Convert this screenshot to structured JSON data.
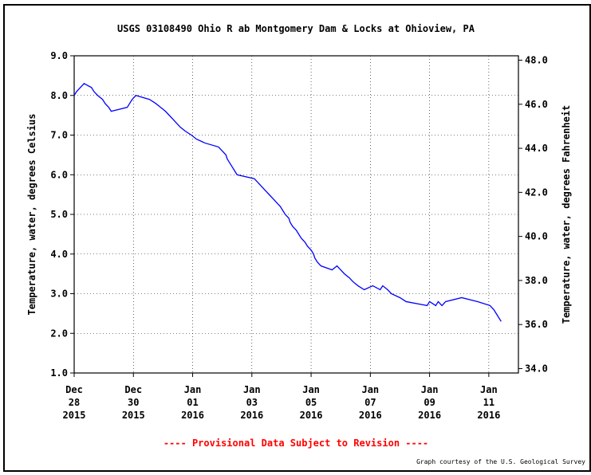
{
  "chart_data": {
    "type": "line",
    "title": "USGS 03108490 Ohio R ab Montgomery Dam & Locks at Ohioview, PA",
    "ylabel": "Temperature, water, degrees Celsius",
    "y2label": "Temperature, water, degrees Fahrenheit",
    "note": "---- Provisional Data Subject to Revision ----",
    "credit": "Graph courtesy of the U.S. Geological Survey",
    "xlim": [
      "2015-12-28T00:00",
      "2016-01-12T00:00"
    ],
    "xticks": [
      {
        "value": "2015-12-28T00:00",
        "label": "Dec\n28\n2015"
      },
      {
        "value": "2015-12-30T00:00",
        "label": "Dec\n30\n2015"
      },
      {
        "value": "2016-01-01T00:00",
        "label": "Jan\n01\n2016"
      },
      {
        "value": "2016-01-03T00:00",
        "label": "Jan\n03\n2016"
      },
      {
        "value": "2016-01-05T00:00",
        "label": "Jan\n05\n2016"
      },
      {
        "value": "2016-01-07T00:00",
        "label": "Jan\n07\n2016"
      },
      {
        "value": "2016-01-09T00:00",
        "label": "Jan\n09\n2016"
      },
      {
        "value": "2016-01-11T00:00",
        "label": "Jan\n11\n2016"
      }
    ],
    "ylim": [
      1,
      9
    ],
    "yticks": [
      {
        "value": 1,
        "label": "1.0"
      },
      {
        "value": 2,
        "label": "2.0"
      },
      {
        "value": 3,
        "label": "3.0"
      },
      {
        "value": 4,
        "label": "4.0"
      },
      {
        "value": 5,
        "label": "5.0"
      },
      {
        "value": 6,
        "label": "6.0"
      },
      {
        "value": 7,
        "label": "7.0"
      },
      {
        "value": 8,
        "label": "8.0"
      },
      {
        "value": 9,
        "label": "9.0"
      }
    ],
    "y2lim": [
      33.8,
      48.2
    ],
    "y2ticks": [
      {
        "value": 34,
        "label": "34.0"
      },
      {
        "value": 36,
        "label": "36.0"
      },
      {
        "value": 38,
        "label": "38.0"
      },
      {
        "value": 40,
        "label": "40.0"
      },
      {
        "value": 42,
        "label": "42.0"
      },
      {
        "value": 44,
        "label": "44.0"
      },
      {
        "value": 46,
        "label": "46.0"
      },
      {
        "value": 48,
        "label": "48.0"
      }
    ],
    "grid": true,
    "x": [
      "2015-12-28T00:00",
      "2015-12-28T02:00",
      "2015-12-28T05:00",
      "2015-12-28T08:00",
      "2015-12-28T14:00",
      "2015-12-28T16:00",
      "2015-12-28T19:00",
      "2015-12-28T23:00",
      "2015-12-29T01:00",
      "2015-12-29T04:00",
      "2015-12-29T06:00",
      "2015-12-29T19:00",
      "2015-12-29T21:00",
      "2015-12-29T23:00",
      "2015-12-30T02:00",
      "2015-12-30T13:00",
      "2015-12-30T18:00",
      "2015-12-30T22:00",
      "2015-12-31T02:00",
      "2015-12-31T05:00",
      "2015-12-31T08:00",
      "2015-12-31T11:00",
      "2015-12-31T14:00",
      "2015-12-31T18:00",
      "2015-12-31T23:00",
      "2016-01-01T03:00",
      "2016-01-01T10:00",
      "2016-01-01T21:00",
      "2016-01-02T00:00",
      "2016-01-02T03:00",
      "2016-01-02T04:00",
      "2016-01-02T06:00",
      "2016-01-02T08:00",
      "2016-01-02T10:00",
      "2016-01-02T12:00",
      "2016-01-03T02:00",
      "2016-01-03T05:00",
      "2016-01-03T08:00",
      "2016-01-03T11:00",
      "2016-01-03T14:00",
      "2016-01-03T17:00",
      "2016-01-03T20:00",
      "2016-01-03T23:00",
      "2016-01-04T01:00",
      "2016-01-04T03:00",
      "2016-01-04T06:00",
      "2016-01-04T07:00",
      "2016-01-04T09:00",
      "2016-01-04T12:00",
      "2016-01-04T14:00",
      "2016-01-04T16:00",
      "2016-01-04T19:00",
      "2016-01-04T21:00",
      "2016-01-05T00:00",
      "2016-01-05T02:00",
      "2016-01-05T03:00",
      "2016-01-05T05:00",
      "2016-01-05T08:00",
      "2016-01-05T17:00",
      "2016-01-05T21:00",
      "2016-01-06T00:00",
      "2016-01-06T03:00",
      "2016-01-06T07:00",
      "2016-01-06T10:00",
      "2016-01-06T14:00",
      "2016-01-06T19:00",
      "2016-01-07T02:00",
      "2016-01-07T08:00",
      "2016-01-07T10:00",
      "2016-01-07T14:00",
      "2016-01-07T17:00",
      "2016-01-08T00:00",
      "2016-01-08T05:00",
      "2016-01-08T22:00",
      "2016-01-09T00:00",
      "2016-01-09T05:00",
      "2016-01-09T07:00",
      "2016-01-09T10:00",
      "2016-01-09T13:00",
      "2016-01-10T02:00",
      "2016-01-10T15:00",
      "2016-01-11T01:00",
      "2016-01-11T04:00",
      "2016-01-11T06:00",
      "2016-01-11T08:00",
      "2016-01-11T10:00"
    ],
    "series": [
      {
        "color": "#0000ff",
        "values": [
          8.0,
          8.1,
          8.2,
          8.3,
          8.2,
          8.1,
          8.0,
          7.9,
          7.8,
          7.7,
          7.6,
          7.7,
          7.8,
          7.9,
          8.0,
          7.9,
          7.8,
          7.7,
          7.6,
          7.5,
          7.4,
          7.3,
          7.2,
          7.1,
          7.0,
          6.9,
          6.8,
          6.7,
          6.6,
          6.5,
          6.4,
          6.3,
          6.2,
          6.1,
          6.0,
          5.9,
          5.8,
          5.7,
          5.6,
          5.5,
          5.4,
          5.3,
          5.2,
          5.1,
          5.0,
          4.9,
          4.8,
          4.7,
          4.6,
          4.5,
          4.4,
          4.3,
          4.2,
          4.1,
          4.0,
          3.9,
          3.8,
          3.7,
          3.6,
          3.7,
          3.6,
          3.5,
          3.4,
          3.3,
          3.2,
          3.1,
          3.2,
          3.1,
          3.2,
          3.1,
          3.0,
          2.9,
          2.8,
          2.7,
          2.8,
          2.7,
          2.8,
          2.7,
          2.8,
          2.9,
          2.8,
          2.7,
          2.6,
          2.5,
          2.4,
          2.3
        ]
      }
    ]
  }
}
